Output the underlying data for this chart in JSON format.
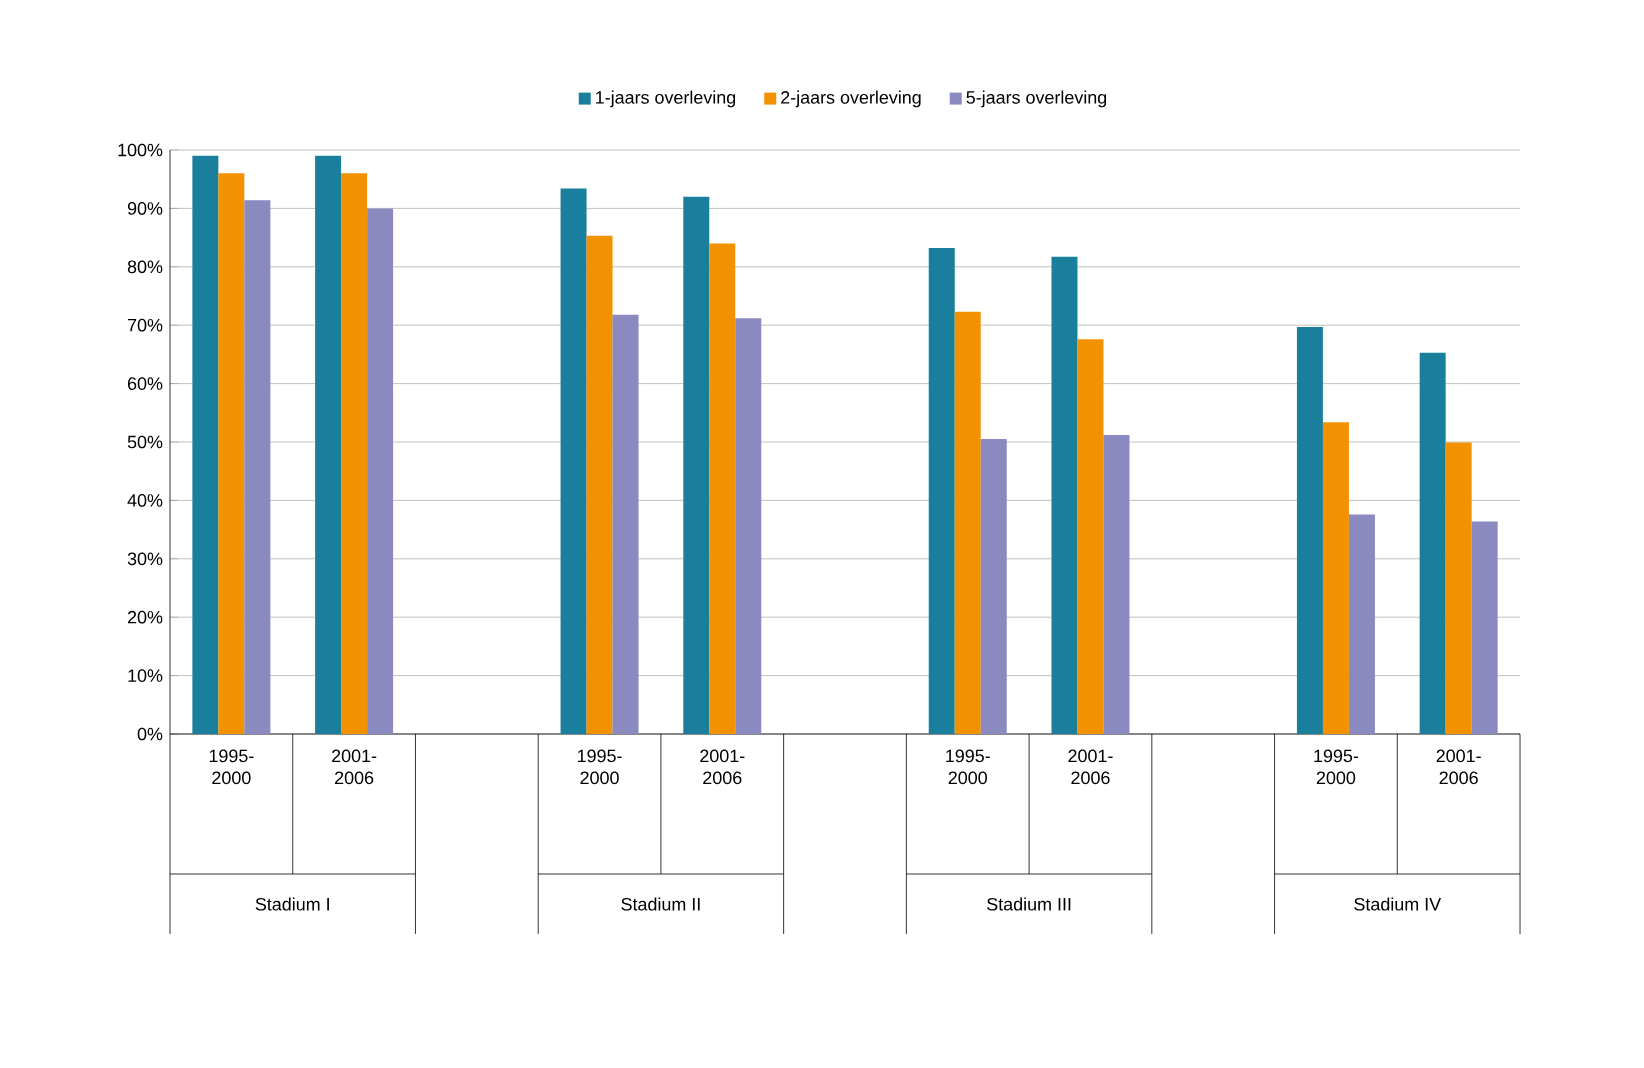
{
  "chart_data": {
    "type": "bar",
    "categories": [
      "1995-2000",
      "2001-2006",
      null,
      "1995-2000",
      "2001-2006",
      null,
      "1995-2000",
      "2001-2006",
      null,
      "1995-2000",
      "2001-2006"
    ],
    "series": [
      {
        "name": "1-jaars overleving",
        "color": "#1a7f9c",
        "values": [
          99,
          99,
          null,
          93.4,
          92,
          null,
          83.2,
          81.7,
          null,
          69.7,
          65.3
        ]
      },
      {
        "name": "2-jaars overleving",
        "color": "#f39200",
        "values": [
          96,
          96,
          null,
          85.3,
          84,
          null,
          72.3,
          67.6,
          null,
          53.4,
          49.9
        ]
      },
      {
        "name": "5-jaars overleving",
        "color": "#8a89c0",
        "values": [
          91.4,
          90,
          null,
          71.8,
          71.2,
          null,
          50.5,
          51.2,
          null,
          37.6,
          36.4
        ]
      }
    ],
    "ylim": [
      0,
      100
    ],
    "yticks": [
      {
        "value": 0,
        "label": "0%"
      },
      {
        "value": 10,
        "label": "10%"
      },
      {
        "value": 20,
        "label": "20%"
      },
      {
        "value": 30,
        "label": "30%"
      },
      {
        "value": 40,
        "label": "40%"
      },
      {
        "value": 50,
        "label": "50%"
      },
      {
        "value": 60,
        "label": "60%"
      },
      {
        "value": 70,
        "label": "70%"
      },
      {
        "value": 80,
        "label": "80%"
      },
      {
        "value": 90,
        "label": "90%"
      },
      {
        "value": 100,
        "label": "100%"
      }
    ],
    "grid": "y",
    "legend": "top",
    "annotations": [
      "Stadium I",
      "Stadium II",
      "Stadium III",
      "Stadium IV"
    ]
  }
}
